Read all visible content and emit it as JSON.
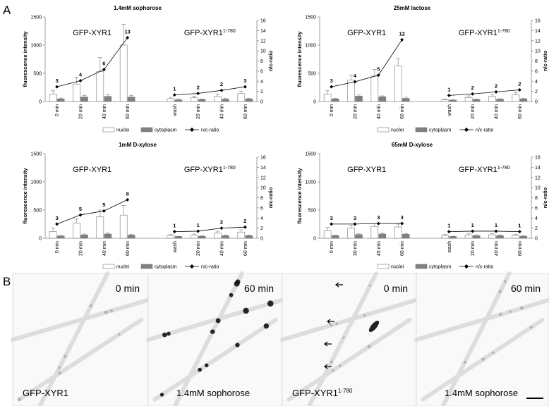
{
  "panel_labels": [
    "A",
    "B"
  ],
  "chart_data": [
    {
      "type": "bar",
      "title": "1.4mM sophorose",
      "ylabel": "fluorescence intensity",
      "y2label": "n/c-ratio",
      "annotations": [
        {
          "text": "GFP-XYR1"
        },
        {
          "text": "GFP-XYR1",
          "sup": "1-780"
        }
      ],
      "categories": [
        "0 min",
        "20 min",
        "40 min",
        "60 min",
        null,
        "wash",
        "20 min",
        "40 min",
        "60 min"
      ],
      "ylim": [
        0,
        1500
      ],
      "yticks": [
        0,
        500,
        1000,
        1500
      ],
      "y2lim": [
        0,
        16
      ],
      "y2ticks": [
        0,
        2,
        4,
        6,
        8,
        10,
        12,
        14,
        16
      ],
      "grid": false,
      "series": [
        {
          "name": "nuclei",
          "color": "#ffffff",
          "values": [
            130,
            310,
            530,
            1000,
            null,
            50,
            65,
            90,
            140
          ],
          "errors": [
            60,
            120,
            250,
            370,
            null,
            25,
            30,
            40,
            45
          ]
        },
        {
          "name": "cytoplasm",
          "color": "#808080",
          "values": [
            45,
            80,
            90,
            80,
            null,
            30,
            35,
            40,
            45
          ],
          "errors": [
            15,
            30,
            30,
            30,
            null,
            10,
            10,
            15,
            10
          ]
        },
        {
          "name": "n/c-ratio",
          "color": "#000000",
          "axis": "y2",
          "values": [
            2.9,
            4.1,
            6.3,
            12.6,
            null,
            1.3,
            1.6,
            2.2,
            2.9
          ],
          "value_labels": [
            "3",
            "4",
            "6",
            "13",
            null,
            "1",
            "2",
            "2",
            "3"
          ]
        }
      ]
    },
    {
      "type": "bar",
      "title": "25mM lactose",
      "ylabel": "fluorescence intensity",
      "y2label": "n/c-ratio",
      "annotations": [
        {
          "text": "GFP-XYR1"
        },
        {
          "text": "GFP-XYR1",
          "sup": "1-780"
        }
      ],
      "categories": [
        "0 min",
        "20 min",
        "40 min",
        "60 min",
        null,
        "wash",
        "20 min",
        "40 min",
        "60 min"
      ],
      "ylim": [
        0,
        1500
      ],
      "yticks": [
        0,
        500,
        1000,
        1500
      ],
      "y2lim": [
        0,
        16
      ],
      "y2ticks": [
        0,
        2,
        4,
        6,
        8,
        10,
        12,
        14,
        16
      ],
      "grid": false,
      "series": [
        {
          "name": "nuclei",
          "color": "#ffffff",
          "values": [
            130,
            380,
            450,
            630,
            null,
            30,
            70,
            90,
            120
          ],
          "errors": [
            60,
            90,
            120,
            130,
            null,
            10,
            30,
            30,
            40
          ]
        },
        {
          "name": "cytoplasm",
          "color": "#808080",
          "values": [
            45,
            95,
            85,
            55,
            null,
            25,
            35,
            40,
            45
          ],
          "errors": [
            10,
            20,
            15,
            20,
            null,
            5,
            10,
            10,
            10
          ]
        },
        {
          "name": "n/c-ratio",
          "color": "#000000",
          "axis": "y2",
          "values": [
            2.9,
            3.9,
            5.2,
            12.2,
            null,
            1.2,
            1.5,
            1.9,
            2.3
          ],
          "value_labels": [
            "3",
            "4",
            "5",
            "12",
            null,
            "1",
            "2",
            "2",
            "2"
          ]
        }
      ]
    },
    {
      "type": "bar",
      "title": "1mM D-xylose",
      "ylabel": "fluorescence intensity",
      "y2label": "n/c-ratio",
      "annotations": [
        {
          "text": "GFP-XYR1"
        },
        {
          "text": "GFP-XYR1",
          "sup": "1-780"
        }
      ],
      "categories": [
        "0 min",
        "20 min",
        "40 min",
        "60 min",
        null,
        "wash",
        "20 min",
        "40 min",
        "60 min"
      ],
      "ylim": [
        0,
        1500
      ],
      "yticks": [
        0,
        500,
        1000,
        1500
      ],
      "y2lim": [
        0,
        16
      ],
      "y2ticks": [
        0,
        2,
        4,
        6,
        8,
        10,
        12,
        14,
        16
      ],
      "grid": false,
      "series": [
        {
          "name": "nuclei",
          "color": "#ffffff",
          "values": [
            120,
            270,
            380,
            410,
            null,
            50,
            55,
            90,
            110
          ],
          "errors": [
            60,
            70,
            120,
            170,
            null,
            15,
            20,
            35,
            40
          ]
        },
        {
          "name": "cytoplasm",
          "color": "#808080",
          "values": [
            40,
            60,
            75,
            55,
            null,
            30,
            35,
            45,
            45
          ],
          "errors": [
            10,
            15,
            15,
            15,
            null,
            5,
            10,
            10,
            10
          ]
        },
        {
          "name": "n/c-ratio",
          "color": "#000000",
          "axis": "y2",
          "values": [
            2.8,
            4.6,
            5.4,
            7.6,
            null,
            1.3,
            1.4,
            2.0,
            2.2
          ],
          "value_labels": [
            "3",
            "5",
            "5",
            "8",
            null,
            "1",
            "1",
            "2",
            "2"
          ]
        }
      ]
    },
    {
      "type": "bar",
      "title": "65mM D-xylose",
      "ylabel": "fluorescence intensity",
      "y2label": "n/c-ratio",
      "annotations": [
        {
          "text": "GFP-XYR1"
        },
        {
          "text": "GFP-XYR1",
          "sup": "1-780"
        }
      ],
      "categories": [
        "0 min",
        "30 min",
        "45 min",
        "60 min",
        null,
        "wash",
        "20 min",
        "40 min",
        "60 min"
      ],
      "ylim": [
        0,
        1500
      ],
      "yticks": [
        0,
        500,
        1000,
        1500
      ],
      "y2lim": [
        0,
        16
      ],
      "y2ticks": [
        0,
        2,
        4,
        6,
        8,
        10,
        12,
        14,
        16
      ],
      "grid": false,
      "series": [
        {
          "name": "nuclei",
          "color": "#ffffff",
          "values": [
            130,
            180,
            210,
            200,
            null,
            50,
            60,
            60,
            50
          ],
          "errors": [
            60,
            50,
            50,
            50,
            null,
            15,
            25,
            20,
            20
          ]
        },
        {
          "name": "cytoplasm",
          "color": "#808080",
          "values": [
            45,
            65,
            75,
            70,
            null,
            30,
            45,
            45,
            35
          ],
          "errors": [
            10,
            15,
            15,
            15,
            null,
            5,
            10,
            10,
            10
          ]
        },
        {
          "name": "n/c-ratio",
          "color": "#000000",
          "axis": "y2",
          "values": [
            2.8,
            2.8,
            2.9,
            2.9,
            null,
            1.3,
            1.4,
            1.4,
            1.3
          ],
          "value_labels": [
            "3",
            "3",
            "3",
            "3",
            null,
            "1",
            "1",
            "1",
            "1"
          ]
        }
      ]
    }
  ],
  "images": [
    {
      "time": "0 min",
      "caption": "GFP-XYR1"
    },
    {
      "time": "60 min",
      "caption": "1.4mM sophorose"
    },
    {
      "time": "0 min",
      "caption": "GFP-XYR1",
      "caption_sup": "1-780"
    },
    {
      "time": "60 min",
      "caption": "1.4mM sophorose"
    }
  ]
}
